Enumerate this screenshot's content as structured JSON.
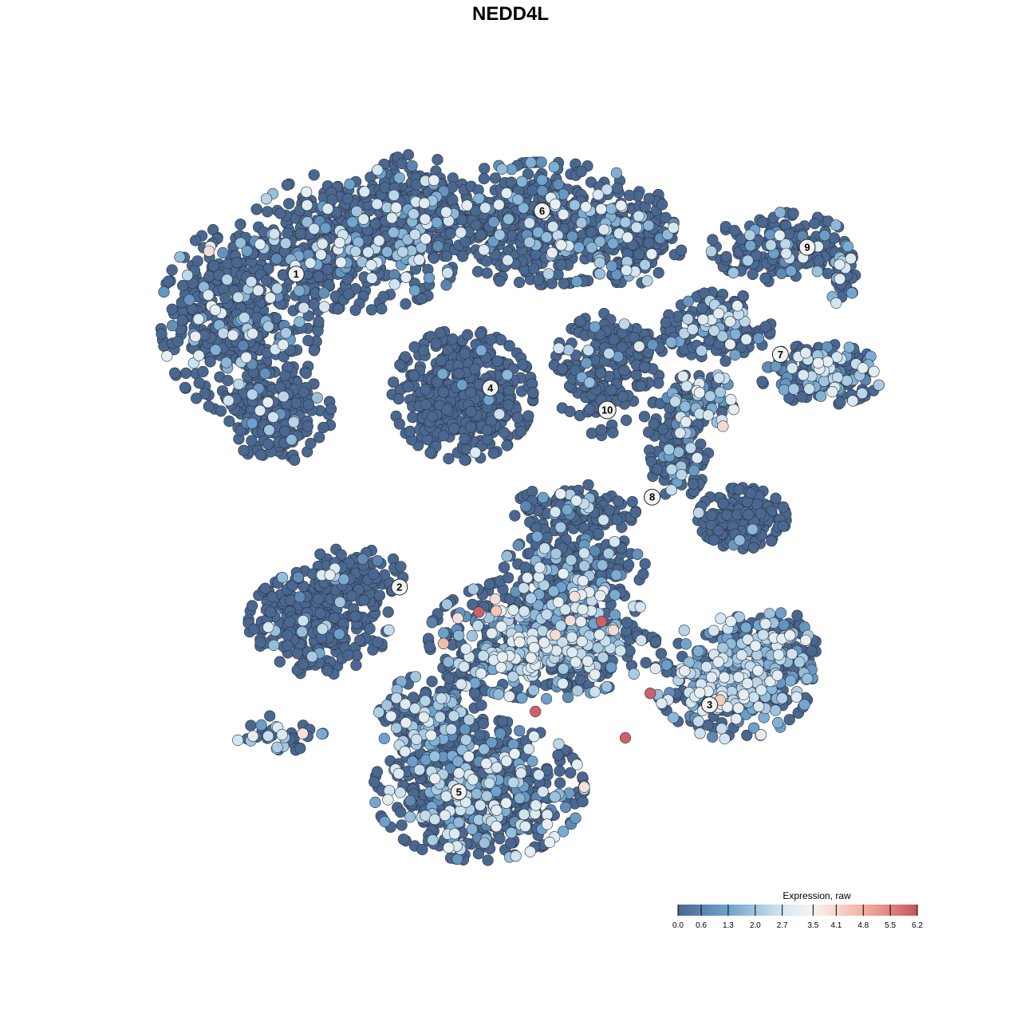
{
  "chart_data": {
    "type": "scatter",
    "title": "NEDD4L",
    "xlabel": "",
    "ylabel": "",
    "axes_visible": false,
    "grid": false,
    "embedding_units": "dim1 / dim2 (arbitrary, approximate)",
    "xlim": [
      -38,
      42
    ],
    "ylim": [
      -38,
      38
    ],
    "legend": {
      "title": "Expression, raw",
      "placement": "bottom-right",
      "range": [
        0.0,
        6.2
      ],
      "ticks": [
        "0.0",
        "0.6",
        "1.3",
        "2.0",
        "2.7",
        "3.5",
        "4.1",
        "4.8",
        "5.5",
        "6.2"
      ],
      "colors": [
        {
          "value": 0.0,
          "color": "#4a6790"
        },
        {
          "value": 1.3,
          "color": "#6ea3cd"
        },
        {
          "value": 2.7,
          "color": "#d4e6f1"
        },
        {
          "value": 3.5,
          "color": "#f7f5f3"
        },
        {
          "value": 4.8,
          "color": "#f2b39c"
        },
        {
          "value": 6.2,
          "color": "#c8535f"
        }
      ]
    },
    "cluster_labels": [
      {
        "label": "1",
        "x": -22.4,
        "y": 24.7
      },
      {
        "label": "2",
        "x": -11.6,
        "y": -8.0
      },
      {
        "label": "3",
        "x": 20.8,
        "y": -20.3
      },
      {
        "label": "4",
        "x": -2.1,
        "y": 12.8
      },
      {
        "label": "5",
        "x": -5.4,
        "y": -29.4
      },
      {
        "label": "6",
        "x": 3.3,
        "y": 31.3
      },
      {
        "label": "7",
        "x": 28.2,
        "y": 16.3
      },
      {
        "label": "8",
        "x": 14.8,
        "y": 1.4
      },
      {
        "label": "9",
        "x": 31.0,
        "y": 27.5
      },
      {
        "label": "10",
        "x": 10.1,
        "y": 10.5
      }
    ],
    "cell_regions": [
      {
        "cluster": "1",
        "x": -28.3,
        "y": 20.0,
        "sx": 7.5,
        "sy": 9.0,
        "n": 520,
        "expressing": 0.12
      },
      {
        "cluster": "1",
        "x": -15.8,
        "y": 28.3,
        "sx": 10.8,
        "sy": 6.7,
        "n": 520,
        "expressing": 0.18
      },
      {
        "cluster": "1",
        "x": -24.2,
        "y": 10.0,
        "sx": 5.0,
        "sy": 4.6,
        "n": 200,
        "expressing": 0.08
      },
      {
        "cluster": "1",
        "x": -10.0,
        "y": 31.7,
        "sx": 5.0,
        "sy": 5.0,
        "n": 200,
        "expressing": 0.15
      },
      {
        "cluster": "6",
        "x": 3.3,
        "y": 30.0,
        "sx": 12.5,
        "sy": 5.8,
        "n": 520,
        "expressing": 0.15
      },
      {
        "cluster": "6",
        "x": 12.5,
        "y": 28.3,
        "sx": 5.0,
        "sy": 4.2,
        "n": 150,
        "expressing": 0.2
      },
      {
        "cluster": "4",
        "x": -5.0,
        "y": 12.1,
        "sx": 6.7,
        "sy": 6.2,
        "n": 460,
        "expressing": 0.02
      },
      {
        "cluster": "10",
        "x": 10.0,
        "y": 14.2,
        "sx": 5.0,
        "sy": 5.8,
        "n": 160,
        "expressing": 0.05
      },
      {
        "cluster": "10",
        "x": 11.7,
        "y": 17.5,
        "sx": 6.0,
        "sy": 1.8,
        "n": 80,
        "expressing": 0.05
      },
      {
        "cluster": "7",
        "x": 21.7,
        "y": 19.2,
        "sx": 5.0,
        "sy": 3.3,
        "n": 200,
        "expressing": 0.15
      },
      {
        "cluster": "7",
        "x": 32.5,
        "y": 14.2,
        "sx": 5.8,
        "sy": 2.9,
        "n": 200,
        "expressing": 0.35
      },
      {
        "cluster": "9",
        "x": 28.3,
        "y": 27.5,
        "sx": 6.7,
        "sy": 3.3,
        "n": 200,
        "expressing": 0.2
      },
      {
        "cluster": "9",
        "x": 34.6,
        "y": 25.0,
        "sx": 1.3,
        "sy": 3.3,
        "n": 50,
        "expressing": 0.25
      },
      {
        "cluster": "8",
        "x": 17.5,
        "y": 6.7,
        "sx": 2.9,
        "sy": 5.0,
        "n": 150,
        "expressing": 0.15
      },
      {
        "cluster": "8",
        "x": 24.2,
        "y": -0.8,
        "sx": 4.2,
        "sy": 2.9,
        "n": 200,
        "expressing": 0.02
      },
      {
        "cluster": "8",
        "x": 6.7,
        "y": 0.0,
        "sx": 5.8,
        "sy": 2.5,
        "n": 150,
        "expressing": 0.1
      },
      {
        "cluster": "8",
        "x": 20.0,
        "y": 11.7,
        "sx": 3.3,
        "sy": 2.5,
        "n": 80,
        "expressing": 0.5
      },
      {
        "cluster": "2",
        "x": -20.0,
        "y": -11.7,
        "sx": 6.7,
        "sy": 5.0,
        "n": 300,
        "expressing": 0.08
      },
      {
        "cluster": "2",
        "x": -16.7,
        "y": -6.7,
        "sx": 5.0,
        "sy": 2.5,
        "n": 100,
        "expressing": 0.08
      },
      {
        "cluster": "2",
        "x": 3.3,
        "y": -13.3,
        "sx": 10.8,
        "sy": 5.8,
        "n": 620,
        "expressing": 0.45
      },
      {
        "cluster": "2",
        "x": 6.7,
        "y": -5.8,
        "sx": 6.7,
        "sy": 3.3,
        "n": 200,
        "expressing": 0.2
      },
      {
        "cluster": "3",
        "x": 23.3,
        "y": -17.5,
        "sx": 7.5,
        "sy": 5.8,
        "n": 400,
        "expressing": 0.55
      },
      {
        "cluster": "3",
        "x": 28.3,
        "y": -14.2,
        "sx": 3.3,
        "sy": 3.3,
        "n": 100,
        "expressing": 0.45
      },
      {
        "cluster": "5",
        "x": -3.3,
        "y": -29.2,
        "sx": 10.0,
        "sy": 6.7,
        "n": 620,
        "expressing": 0.3
      },
      {
        "cluster": "5",
        "x": -8.3,
        "y": -21.7,
        "sx": 5.0,
        "sy": 4.2,
        "n": 200,
        "expressing": 0.3
      },
      {
        "cluster": "5",
        "x": -24.2,
        "y": -23.3,
        "sx": 4.2,
        "sy": 1.7,
        "n": 40,
        "expressing": 0.5
      }
    ],
    "high_expression_cells": [
      {
        "x": -3.3,
        "y": -10.6,
        "value": 6.0
      },
      {
        "x": 9.5,
        "y": -11.6,
        "value": 6.0
      },
      {
        "x": 14.6,
        "y": -19.1,
        "value": 6.0
      },
      {
        "x": 2.6,
        "y": -21.0,
        "value": 6.0
      },
      {
        "x": 12.0,
        "y": -23.75,
        "value": 6.0
      },
      {
        "x": -31.5,
        "y": 27.1,
        "value": 4.0
      },
      {
        "x": -1.6,
        "y": -9.25,
        "value": 4.0
      },
      {
        "x": -1.5,
        "y": -10.5,
        "value": 4.4
      },
      {
        "x": -5.5,
        "y": -11.25,
        "value": 4.0
      },
      {
        "x": 6.7,
        "y": -9.0,
        "value": 3.9
      },
      {
        "x": 6.25,
        "y": -11.5,
        "value": 4.0
      },
      {
        "x": 4.7,
        "y": -13.0,
        "value": 4.0
      },
      {
        "x": 10.75,
        "y": -12.5,
        "value": 4.0
      },
      {
        "x": -7.0,
        "y": -13.9,
        "value": 4.6
      },
      {
        "x": 7.7,
        "y": -28.9,
        "value": 3.9
      },
      {
        "x": -21.7,
        "y": -23.3,
        "value": 3.9
      },
      {
        "x": 22.2,
        "y": 8.8,
        "value": 4.0
      },
      {
        "x": 21.9,
        "y": -19.8,
        "value": 4.3
      }
    ]
  }
}
